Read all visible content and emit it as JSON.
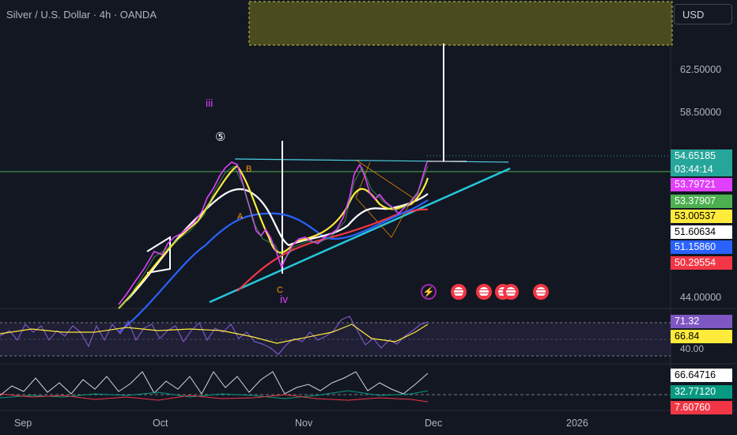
{
  "header": {
    "title": "Silver / U.S. Dollar · 4h · OANDA",
    "currency": "USD"
  },
  "price_axis": {
    "ticks": [
      "62.50000",
      "58.50000",
      "44.00000"
    ]
  },
  "price_tags": [
    {
      "value": "54.65185",
      "bg": "#26a69a",
      "fg": "#ffffff"
    },
    {
      "value": "03:44:14",
      "bg": "#26a69a",
      "fg": "#ffffff"
    },
    {
      "value": "53.79721",
      "bg": "#e040fb",
      "fg": "#ffffff"
    },
    {
      "value": "53.37907",
      "bg": "#4caf50",
      "fg": "#ffffff"
    },
    {
      "value": "53.00537",
      "bg": "#ffeb3b",
      "fg": "#000000"
    },
    {
      "value": "51.60634",
      "bg": "#ffffff",
      "fg": "#000000"
    },
    {
      "value": "51.15860",
      "bg": "#2962ff",
      "fg": "#ffffff"
    },
    {
      "value": "50.29554",
      "bg": "#f23645",
      "fg": "#ffffff"
    }
  ],
  "waves": {
    "iii": "iii",
    "five": "⑤",
    "b": "B",
    "a": "A",
    "c": "C",
    "iv": "iv"
  },
  "events": [
    "lightning-icon",
    "us-flag-icon",
    "us-flag-icon",
    "us-flag-icon",
    "us-flag-icon",
    "us-flag-icon"
  ],
  "rsi": {
    "ticks": [
      "40.00"
    ],
    "tags": [
      {
        "value": "71.32",
        "bg": "#7e57c2",
        "fg": "#ffffff"
      },
      {
        "value": "66.84",
        "bg": "#ffeb3b",
        "fg": "#000000"
      }
    ]
  },
  "osc": {
    "tags": [
      {
        "value": "66.64716",
        "bg": "#ffffff",
        "fg": "#000000"
      },
      {
        "value": "32.77120",
        "bg": "#089981",
        "fg": "#ffffff"
      },
      {
        "value": "7.60760",
        "bg": "#f23645",
        "fg": "#ffffff"
      }
    ]
  },
  "x_axis": {
    "ticks": [
      "Sep",
      "Oct",
      "Nov",
      "Dec",
      "2026"
    ]
  }
}
